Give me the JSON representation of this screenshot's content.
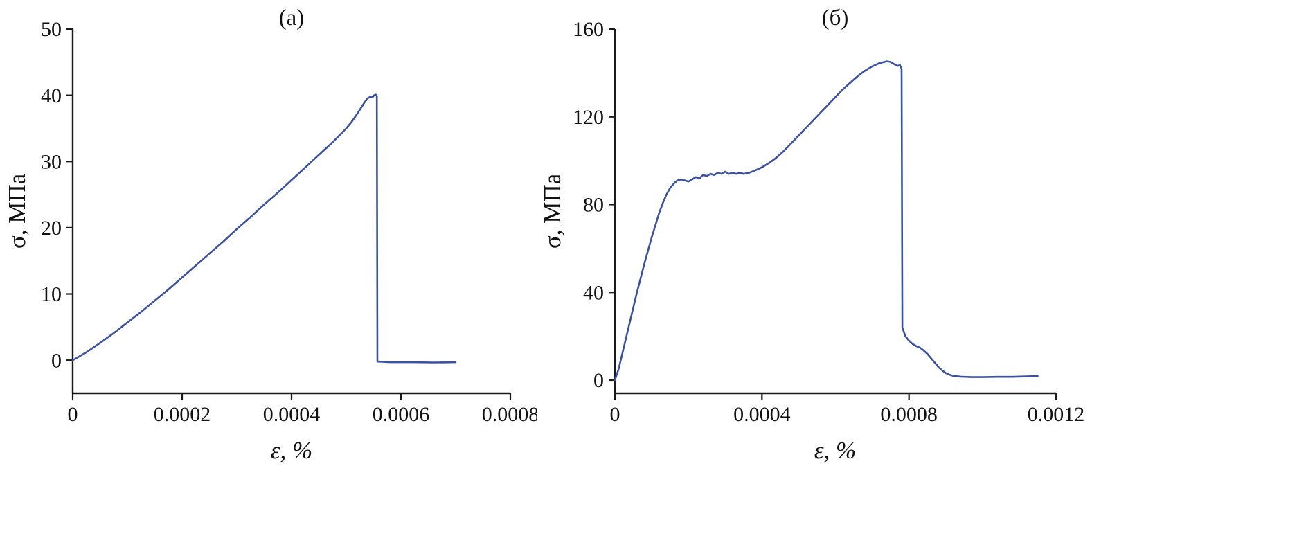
{
  "figure": {
    "background_color": "#ffffff",
    "panel_count": 2
  },
  "chart_data": [
    {
      "type": "line",
      "title": "(а)",
      "xlabel": "ε, %",
      "ylabel": "σ, МПа",
      "grid": false,
      "legend": "none",
      "line_color": "#3b52a4",
      "axis_color": "#1a1a1a",
      "xlim": [
        0,
        0.0008
      ],
      "ylim": [
        -5,
        50
      ],
      "xtick_values": [
        0,
        0.0002,
        0.0004,
        0.0006,
        0.0008
      ],
      "xtick_labels": [
        "0",
        "0.0002",
        "0.0004",
        "0.0006",
        "0.0008"
      ],
      "ytick_values": [
        0,
        10,
        20,
        30,
        40,
        50
      ],
      "ytick_labels": [
        "0",
        "10",
        "20",
        "30",
        "40",
        "50"
      ],
      "series": [
        {
          "name": "stress-strain-curve-a",
          "points": [
            [
              0.0,
              0.0
            ],
            [
              2.5e-05,
              1.2
            ],
            [
              5e-05,
              2.6
            ],
            [
              7.5e-05,
              4.1
            ],
            [
              0.0001,
              5.7
            ],
            [
              0.000125,
              7.3
            ],
            [
              0.00015,
              9.0
            ],
            [
              0.000175,
              10.7
            ],
            [
              0.0002,
              12.5
            ],
            [
              0.000225,
              14.3
            ],
            [
              0.00025,
              16.1
            ],
            [
              0.000275,
              17.9
            ],
            [
              0.0003,
              19.8
            ],
            [
              0.000325,
              21.6
            ],
            [
              0.00035,
              23.5
            ],
            [
              0.000375,
              25.3
            ],
            [
              0.0004,
              27.2
            ],
            [
              0.000425,
              29.1
            ],
            [
              0.00045,
              31.0
            ],
            [
              0.000475,
              32.9
            ],
            [
              0.0005,
              35.0
            ],
            [
              0.00051,
              36.0
            ],
            [
              0.00052,
              37.2
            ],
            [
              0.00053,
              38.5
            ],
            [
              0.000535,
              39.1
            ],
            [
              0.00054,
              39.6
            ],
            [
              0.000545,
              39.8
            ],
            [
              0.000548,
              39.7
            ],
            [
              0.000551,
              40.0
            ],
            [
              0.000554,
              40.1
            ],
            [
              0.000556,
              39.9
            ],
            [
              0.000557,
              -0.2
            ],
            [
              0.00058,
              -0.3
            ],
            [
              0.00062,
              -0.3
            ],
            [
              0.00066,
              -0.35
            ],
            [
              0.0007,
              -0.3
            ]
          ]
        }
      ]
    },
    {
      "type": "line",
      "title": "(б)",
      "xlabel": "ε, %",
      "ylabel": "σ, МПа",
      "grid": false,
      "legend": "none",
      "line_color": "#3b52a4",
      "axis_color": "#1a1a1a",
      "xlim": [
        0,
        0.0012
      ],
      "ylim": [
        -6,
        160
      ],
      "xtick_values": [
        0,
        0.0004,
        0.0008,
        0.0012
      ],
      "xtick_labels": [
        "0",
        "0.0004",
        "0.0008",
        "0.0012"
      ],
      "ytick_values": [
        0,
        40,
        80,
        120,
        160
      ],
      "ytick_labels": [
        "0",
        "40",
        "80",
        "120",
        "160"
      ],
      "series": [
        {
          "name": "stress-strain-curve-b",
          "points": [
            [
              0.0,
              0.0
            ],
            [
              1e-05,
              5
            ],
            [
              2e-05,
              12
            ],
            [
              3e-05,
              19
            ],
            [
              4e-05,
              26
            ],
            [
              5e-05,
              33
            ],
            [
              6e-05,
              40
            ],
            [
              7e-05,
              46.5
            ],
            [
              8e-05,
              53
            ],
            [
              9e-05,
              59
            ],
            [
              0.0001,
              65
            ],
            [
              0.00011,
              70.5
            ],
            [
              0.00012,
              76
            ],
            [
              0.00013,
              80.5
            ],
            [
              0.00014,
              84.5
            ],
            [
              0.00015,
              87.5
            ],
            [
              0.00016,
              89.5
            ],
            [
              0.00017,
              91
            ],
            [
              0.00018,
              91.5
            ],
            [
              0.00019,
              91
            ],
            [
              0.0002,
              90.5
            ],
            [
              0.00021,
              91.5
            ],
            [
              0.00022,
              92.5
            ],
            [
              0.00023,
              92
            ],
            [
              0.00024,
              93.5
            ],
            [
              0.00025,
              93
            ],
            [
              0.00026,
              94
            ],
            [
              0.00027,
              93.5
            ],
            [
              0.00028,
              94.5
            ],
            [
              0.00029,
              94
            ],
            [
              0.0003,
              95
            ],
            [
              0.00031,
              94
            ],
            [
              0.00032,
              94.5
            ],
            [
              0.00033,
              94
            ],
            [
              0.00034,
              94.5
            ],
            [
              0.00035,
              94
            ],
            [
              0.00036,
              94.3
            ],
            [
              0.00037,
              94.8
            ],
            [
              0.00038,
              95.5
            ],
            [
              0.00039,
              96.2
            ],
            [
              0.0004,
              97
            ],
            [
              0.00042,
              99
            ],
            [
              0.00044,
              101.5
            ],
            [
              0.00046,
              104.5
            ],
            [
              0.00048,
              108
            ],
            [
              0.0005,
              111.5
            ],
            [
              0.00052,
              115
            ],
            [
              0.00054,
              118.5
            ],
            [
              0.00056,
              122
            ],
            [
              0.00058,
              125.5
            ],
            [
              0.0006,
              129
            ],
            [
              0.00062,
              132.5
            ],
            [
              0.00064,
              135.5
            ],
            [
              0.00066,
              138.5
            ],
            [
              0.00068,
              141
            ],
            [
              0.0007,
              143
            ],
            [
              0.00072,
              144.5
            ],
            [
              0.00074,
              145.3
            ],
            [
              0.00075,
              145
            ],
            [
              0.00076,
              144
            ],
            [
              0.00077,
              143.2
            ],
            [
              0.000775,
              143.6
            ],
            [
              0.00078,
              142
            ],
            [
              0.000782,
              24
            ],
            [
              0.00079,
              20
            ],
            [
              0.0008,
              18
            ],
            [
              0.00081,
              16.5
            ],
            [
              0.00082,
              15.5
            ],
            [
              0.00083,
              14.8
            ],
            [
              0.00084,
              13.5
            ],
            [
              0.00085,
              12
            ],
            [
              0.00086,
              10
            ],
            [
              0.00087,
              8
            ],
            [
              0.00088,
              6
            ],
            [
              0.00089,
              4.5
            ],
            [
              0.0009,
              3.2
            ],
            [
              0.00091,
              2.5
            ],
            [
              0.00092,
              2
            ],
            [
              0.00094,
              1.6
            ],
            [
              0.00097,
              1.4
            ],
            [
              0.001,
              1.4
            ],
            [
              0.00104,
              1.5
            ],
            [
              0.00108,
              1.5
            ],
            [
              0.00112,
              1.7
            ],
            [
              0.00115,
              1.9
            ]
          ]
        }
      ]
    }
  ]
}
